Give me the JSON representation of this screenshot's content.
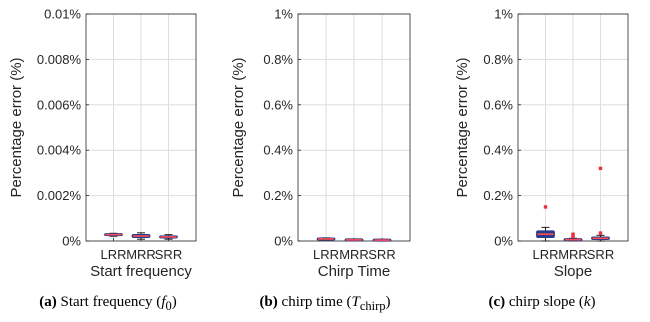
{
  "chart_data": [
    {
      "type": "box",
      "categories": [
        "LRR",
        "MRR",
        "SRR"
      ],
      "xlabel": "Start frequency",
      "ylabel": "Percentage error (%)",
      "ylim": [
        0,
        0.01
      ],
      "yticks": [
        "0%",
        "0.002%",
        "0.004%",
        "0.006%",
        "0.008%",
        "0.01%"
      ],
      "grid": true,
      "boxes": [
        {
          "whisker_low": 0.00021,
          "q1": 0.00025,
          "median": 0.00028,
          "q3": 0.00031,
          "whisker_high": 0.00034,
          "outliers": []
        },
        {
          "whisker_low": 8e-05,
          "q1": 0.00015,
          "median": 0.00022,
          "q3": 0.00029,
          "whisker_high": 0.00036,
          "outliers": []
        },
        {
          "whisker_low": 8e-05,
          "q1": 0.00013,
          "median": 0.00018,
          "q3": 0.00023,
          "whisker_high": 0.00028,
          "outliers": []
        }
      ],
      "caption_tag": "(a)",
      "caption_text": "Start frequency (",
      "caption_sym": "f",
      "caption_sub": "0",
      "caption_end": ")"
    },
    {
      "type": "box",
      "categories": [
        "LRR",
        "MRR",
        "SRR"
      ],
      "xlabel": "Chirp Time",
      "ylabel": "Percentage error (%)",
      "ylim": [
        0,
        1
      ],
      "yticks": [
        "0%",
        "0.2%",
        "0.4%",
        "0.6%",
        "0.8%",
        "1%"
      ],
      "grid": true,
      "boxes": [
        {
          "whisker_low": 0.004,
          "q1": 0.007,
          "median": 0.009,
          "q3": 0.011,
          "whisker_high": 0.014,
          "outliers": []
        },
        {
          "whisker_low": 0.002,
          "q1": 0.004,
          "median": 0.005,
          "q3": 0.006,
          "whisker_high": 0.008,
          "outliers": []
        },
        {
          "whisker_low": 0.002,
          "q1": 0.003,
          "median": 0.004,
          "q3": 0.005,
          "whisker_high": 0.007,
          "outliers": []
        }
      ],
      "caption_tag": "(b)",
      "caption_text": "chirp time (",
      "caption_sym": "T",
      "caption_sub": "chirp",
      "caption_end": ")"
    },
    {
      "type": "box",
      "categories": [
        "LRR",
        "MRR",
        "SRR"
      ],
      "xlabel": "Slope",
      "ylabel": "Percentage error (%)",
      "ylim": [
        0,
        1
      ],
      "yticks": [
        "0%",
        "0.2%",
        "0.4%",
        "0.6%",
        "0.8%",
        "1%"
      ],
      "grid": true,
      "boxes": [
        {
          "whisker_low": 0.0,
          "q1": 0.015,
          "median": 0.03,
          "q3": 0.045,
          "whisker_high": 0.06,
          "outliers": [
            0.15
          ]
        },
        {
          "whisker_low": 0.0,
          "q1": 0.003,
          "median": 0.006,
          "q3": 0.009,
          "whisker_high": 0.012,
          "outliers": [
            0.02,
            0.03
          ]
        },
        {
          "whisker_low": 0.0,
          "q1": 0.006,
          "median": 0.012,
          "q3": 0.018,
          "whisker_high": 0.025,
          "outliers": [
            0.035,
            0.32
          ]
        }
      ],
      "caption_tag": "(c)",
      "caption_text": "chirp slope (",
      "caption_sym": "k",
      "caption_sub": "",
      "caption_end": ")"
    }
  ],
  "colors": {
    "box_fill": "#2b3a8c",
    "median": "#ff4d4d",
    "whisker": "#1a1a1a",
    "outlier": "#e8313a",
    "grid": "#dedede",
    "axis": "#262626"
  }
}
